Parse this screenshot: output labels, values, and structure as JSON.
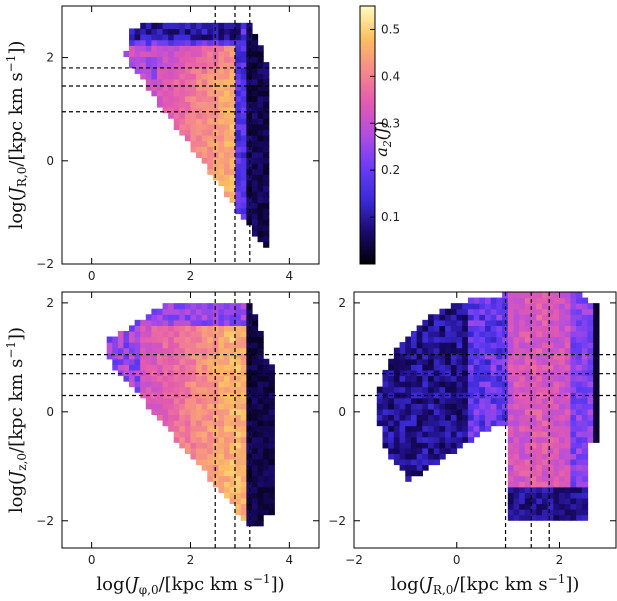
{
  "chart_data": [
    {
      "id": "top-left",
      "type": "heatmap",
      "xlim": [
        -0.6,
        4.6
      ],
      "ylim": [
        -2.0,
        3.0
      ],
      "xticks": [
        0,
        2,
        4
      ],
      "yticks": [
        -2,
        0,
        2
      ],
      "xtick_labels": [
        "0",
        "2",
        "4"
      ],
      "ytick_labels": [
        "−2",
        "0",
        "2"
      ],
      "xlabel": "",
      "ylabel": "log(J_R,0/[kpc km s⁻¹])",
      "vlines": [
        2.5,
        2.9,
        3.2
      ],
      "hlines": [
        1.8,
        1.45,
        0.95
      ],
      "region": {
        "shape": "triangle",
        "vertices": [
          [
            0.45,
            2.3
          ],
          [
            3.6,
            2.3
          ],
          [
            3.6,
            -1.8
          ]
        ],
        "upper_left_extent": [
          0.8,
          2.7
        ]
      },
      "color_ridge_x": 2.9
    },
    {
      "id": "bottom-left",
      "type": "heatmap",
      "xlim": [
        -0.6,
        4.6
      ],
      "ylim": [
        -2.5,
        2.2
      ],
      "xticks": [
        0,
        2,
        4
      ],
      "yticks": [
        -2,
        0,
        2
      ],
      "xtick_labels": [
        "0",
        "2",
        "4"
      ],
      "ytick_labels": [
        "−2",
        "0",
        "2"
      ],
      "xlabel": "log(J_φ,0/[kpc km s⁻¹])",
      "ylabel": "log(J_z,0/[kpc km s⁻¹])",
      "vlines": [
        2.5,
        2.9,
        3.2
      ],
      "hlines": [
        1.05,
        0.7,
        0.3
      ],
      "region": {
        "shape": "half-lens",
        "x_range": [
          0.3,
          3.7
        ],
        "y_range": [
          -2.1,
          2.0
        ]
      },
      "color_ridge_x": 2.9
    },
    {
      "id": "bottom-right",
      "type": "heatmap",
      "xlim": [
        -2.0,
        3.1
      ],
      "ylim": [
        -2.5,
        2.2
      ],
      "xticks": [
        -2,
        0,
        2
      ],
      "yticks": [
        -2,
        0,
        2
      ],
      "xtick_labels": [
        "−2",
        "0",
        "2"
      ],
      "ytick_labels": [
        "−2",
        "0",
        "2"
      ],
      "xlabel": "log(J_R,0/[kpc km s⁻¹])",
      "ylabel": "",
      "vlines": [
        0.95,
        1.45,
        1.8
      ],
      "hlines": [
        1.05,
        0.7,
        0.3
      ],
      "region": {
        "shape": "ellipse-blob",
        "x_range": [
          -1.5,
          2.8
        ],
        "y_range": [
          -1.95,
          2.2
        ]
      },
      "color_ridge_x": 1.6
    }
  ],
  "colorbar": {
    "label": "a₂(J)",
    "vmin": 0.0,
    "vmax": 0.55,
    "ticks": [
      0.1,
      0.2,
      0.3,
      0.4,
      0.5
    ],
    "tick_labels": [
      "0.1",
      "0.2",
      "0.3",
      "0.4",
      "0.5"
    ],
    "colormap_stops": [
      "#000004",
      "#1a0a6e",
      "#3b2bd8",
      "#6a3cf5",
      "#b14de0",
      "#e35ab0",
      "#f58a8a",
      "#fbc061",
      "#fcfdbf"
    ]
  }
}
